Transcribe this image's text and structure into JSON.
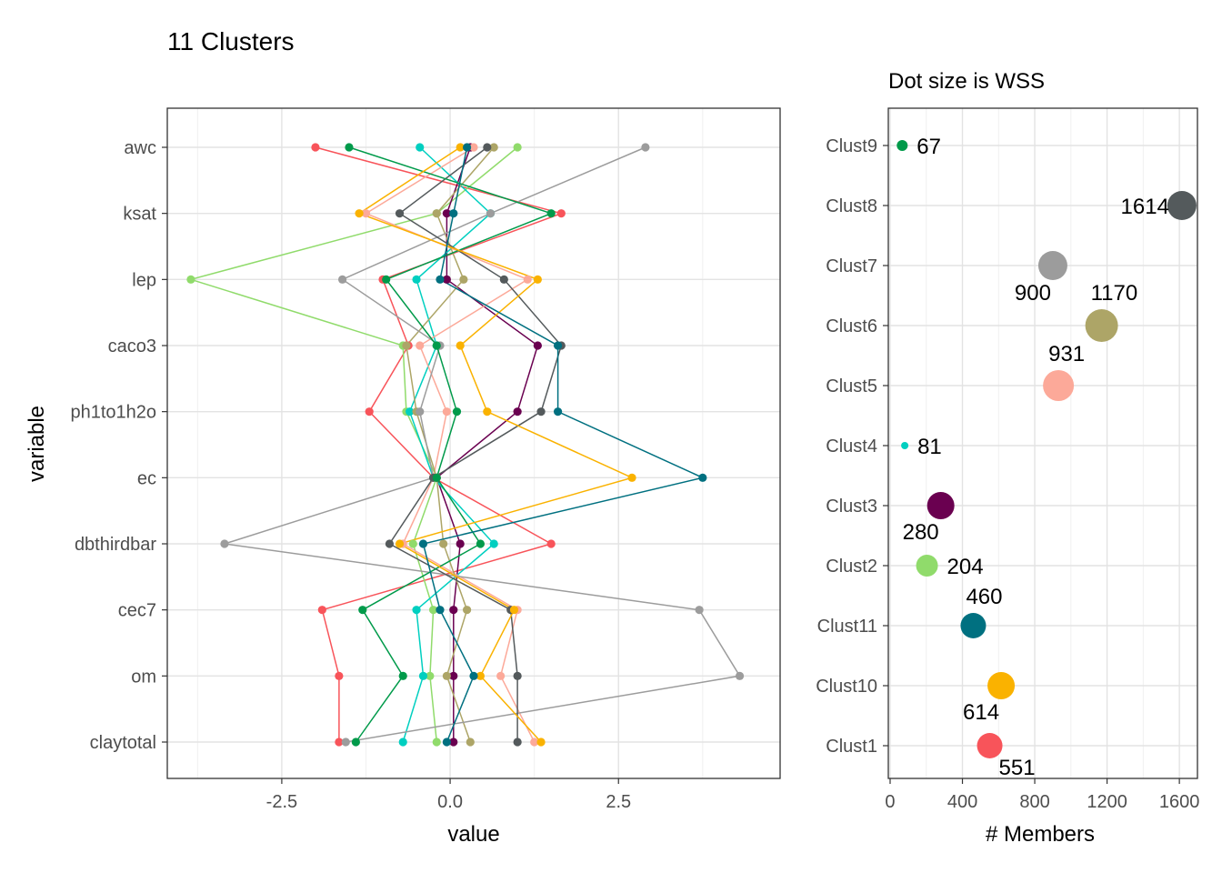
{
  "title": "11 Clusters",
  "chart_data": [
    {
      "type": "line",
      "orientation": "horizontal-profile",
      "xlabel": "value",
      "ylabel": "variable",
      "xlim": [
        -4.2,
        4.9
      ],
      "xticks": [
        -2.5,
        0.0,
        2.5
      ],
      "xtick_labels": [
        "-2.5",
        "0.0",
        "2.5"
      ],
      "variables": [
        "awc",
        "ksat",
        "lep",
        "caco3",
        "ph1to1h2o",
        "ec",
        "dbthirdbar",
        "cec7",
        "om",
        "claytotal"
      ],
      "grid": true,
      "legend": "none",
      "series": [
        {
          "id": "Clust1",
          "color": "#F8545A",
          "values": [
            -2.0,
            1.65,
            -1.0,
            -0.62,
            -1.2,
            -0.25,
            1.5,
            -1.9,
            -1.65,
            -1.65
          ]
        },
        {
          "id": "Clust2",
          "color": "#90DB6B",
          "values": [
            1.0,
            -0.2,
            -3.85,
            -0.7,
            -0.65,
            -0.2,
            -0.55,
            -0.25,
            -0.3,
            -0.2
          ]
        },
        {
          "id": "Clust3",
          "color": "#6A0050",
          "values": [
            0.3,
            -0.05,
            -0.05,
            1.3,
            1.0,
            -0.2,
            0.15,
            0.05,
            0.05,
            0.05
          ]
        },
        {
          "id": "Clust4",
          "color": "#00CFC0",
          "values": [
            -0.45,
            0.6,
            -0.5,
            -0.2,
            -0.6,
            -0.25,
            0.65,
            -0.5,
            -0.4,
            -0.7
          ]
        },
        {
          "id": "Clust5",
          "color": "#FCA999",
          "values": [
            0.35,
            -1.25,
            1.15,
            -0.45,
            -0.05,
            -0.25,
            -0.7,
            1.0,
            0.75,
            1.25
          ]
        },
        {
          "id": "Clust6",
          "color": "#ADA567",
          "values": [
            0.65,
            -0.2,
            0.2,
            -0.65,
            -0.5,
            -0.2,
            -0.1,
            0.25,
            -0.05,
            0.3
          ]
        },
        {
          "id": "Clust7",
          "color": "#9C9C9C",
          "values": [
            2.9,
            0.6,
            -1.6,
            -0.15,
            -0.45,
            -0.25,
            -3.35,
            3.7,
            4.3,
            -1.55
          ]
        },
        {
          "id": "Clust8",
          "color": "#545A5C",
          "values": [
            0.55,
            -0.75,
            0.8,
            1.65,
            1.35,
            -0.25,
            -0.9,
            0.9,
            1.0,
            1.0
          ]
        },
        {
          "id": "Clust9",
          "color": "#009A4A",
          "values": [
            -1.5,
            1.5,
            -0.95,
            -0.2,
            0.1,
            -0.2,
            0.45,
            -1.3,
            -0.7,
            -1.4
          ]
        },
        {
          "id": "Clust10",
          "color": "#FAB200",
          "values": [
            0.15,
            -1.35,
            1.3,
            0.15,
            0.55,
            2.7,
            -0.75,
            0.95,
            0.45,
            1.35
          ]
        },
        {
          "id": "Clust11",
          "color": "#007080",
          "values": [
            0.25,
            0.05,
            -0.15,
            1.6,
            1.6,
            3.75,
            -0.4,
            -0.15,
            0.35,
            -0.05
          ]
        }
      ]
    },
    {
      "type": "scatter",
      "subtitle": "Dot size is WSS",
      "xlabel": "# Members",
      "ylabel": "",
      "xlim": [
        -10,
        1700
      ],
      "xticks": [
        0,
        400,
        800,
        1200,
        1600
      ],
      "xtick_labels": [
        "0",
        "400",
        "800",
        "1200",
        "1600"
      ],
      "categories": [
        "Clust1",
        "Clust10",
        "Clust11",
        "Clust2",
        "Clust3",
        "Clust4",
        "Clust5",
        "Clust6",
        "Clust7",
        "Clust8",
        "Clust9"
      ],
      "grid": true,
      "legend": "none",
      "points": [
        {
          "cluster": "Clust1",
          "members": 551,
          "label": "551",
          "color": "#F8545A",
          "size": 14,
          "label_pos": "below-right"
        },
        {
          "cluster": "Clust10",
          "members": 614,
          "label": "614",
          "color": "#FAB200",
          "size": 15,
          "label_pos": "below-left"
        },
        {
          "cluster": "Clust11",
          "members": 460,
          "label": "460",
          "color": "#007080",
          "size": 14,
          "label_pos": "above-right"
        },
        {
          "cluster": "Clust2",
          "members": 204,
          "label": "204",
          "color": "#90DB6B",
          "size": 12,
          "label_pos": "right"
        },
        {
          "cluster": "Clust3",
          "members": 280,
          "label": "280",
          "color": "#6A0050",
          "size": 15,
          "label_pos": "below-left"
        },
        {
          "cluster": "Clust4",
          "members": 81,
          "label": "81",
          "color": "#00CFC0",
          "size": 4,
          "label_pos": "right"
        },
        {
          "cluster": "Clust5",
          "members": 931,
          "label": "931",
          "color": "#FCA999",
          "size": 17,
          "label_pos": "above-right"
        },
        {
          "cluster": "Clust6",
          "members": 1170,
          "label": "1170",
          "color": "#ADA567",
          "size": 18,
          "label_pos": "above-right"
        },
        {
          "cluster": "Clust7",
          "members": 900,
          "label": "900",
          "color": "#9C9C9C",
          "size": 16,
          "label_pos": "below-left"
        },
        {
          "cluster": "Clust8",
          "members": 1614,
          "label": "1614",
          "color": "#545A5C",
          "size": 16,
          "label_pos": "left"
        },
        {
          "cluster": "Clust9",
          "members": 67,
          "label": "67",
          "color": "#009A4A",
          "size": 6,
          "label_pos": "right"
        }
      ]
    }
  ]
}
